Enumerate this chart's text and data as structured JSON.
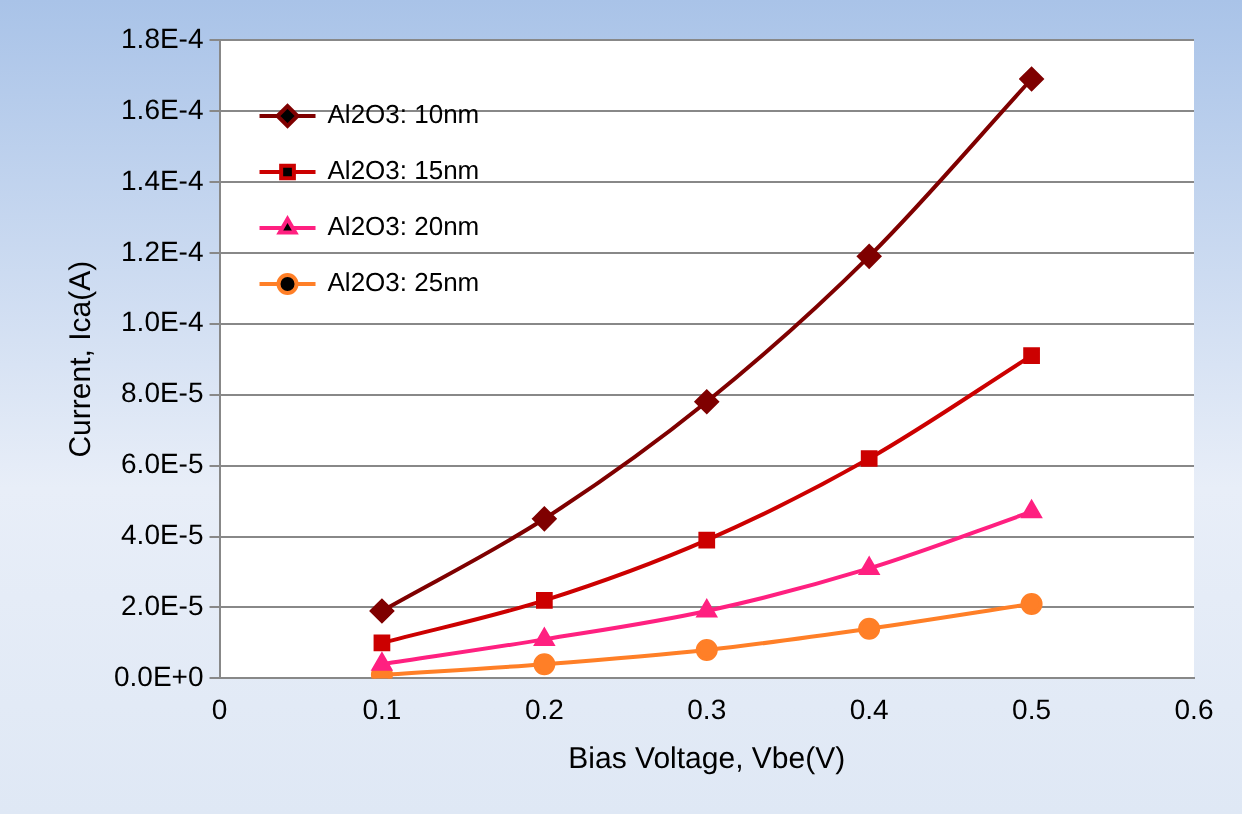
{
  "chart_data": {
    "type": "line",
    "xlabel": "Bias Voltage, Vbe(V)",
    "ylabel": "Current, Ica(A)",
    "x": [
      0.1,
      0.2,
      0.3,
      0.4,
      0.5
    ],
    "series": [
      {
        "name": "Al2O3: 10nm",
        "color": "#7f0000",
        "marker": "diamond",
        "values": [
          1.9e-05,
          4.5e-05,
          7.8e-05,
          0.000119,
          0.000169
        ]
      },
      {
        "name": "Al2O3: 15nm",
        "color": "#cc0000",
        "marker": "square",
        "values": [
          1e-05,
          2.2e-05,
          3.9e-05,
          6.2e-05,
          9.1e-05
        ]
      },
      {
        "name": "Al2O3: 20nm",
        "color": "#ff2080",
        "marker": "triangle",
        "values": [
          4e-06,
          1.1e-05,
          1.9e-05,
          3.1e-05,
          4.7e-05
        ]
      },
      {
        "name": "Al2O3: 25nm",
        "color": "#ff7f27",
        "marker": "circle",
        "values": [
          1e-06,
          4e-06,
          8e-06,
          1.4e-05,
          2.1e-05
        ]
      }
    ],
    "xlim": [
      0,
      0.6
    ],
    "xticks": [
      0,
      0.1,
      0.2,
      0.3,
      0.4,
      0.5,
      0.6
    ],
    "ylim": [
      0,
      0.00018
    ],
    "yticks": [
      {
        "value": 0,
        "label": "0.0E+0"
      },
      {
        "value": 2e-05,
        "label": "2.0E-5"
      },
      {
        "value": 4e-05,
        "label": "4.0E-5"
      },
      {
        "value": 6e-05,
        "label": "6.0E-5"
      },
      {
        "value": 8e-05,
        "label": "8.0E-5"
      },
      {
        "value": 0.0001,
        "label": "1.0E-4"
      },
      {
        "value": 0.00012,
        "label": "1.2E-4"
      },
      {
        "value": 0.00014,
        "label": "1.4E-4"
      },
      {
        "value": 0.00016,
        "label": "1.6E-4"
      },
      {
        "value": 0.00018,
        "label": "1.8E-4"
      }
    ],
    "grid": "y",
    "legend": "top left",
    "line_style": "solid"
  }
}
